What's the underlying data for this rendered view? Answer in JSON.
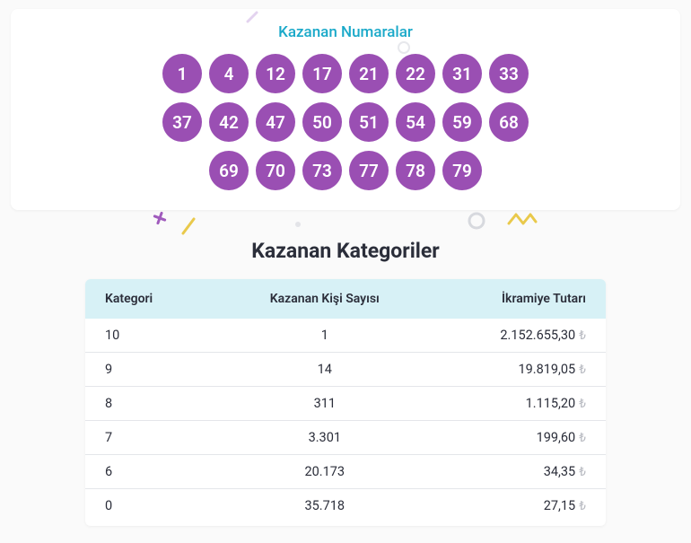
{
  "winning_numbers": {
    "title": "Kazanan Numaralar",
    "title_color": "#1aa9c9",
    "ball_color": "#9a4fb3",
    "ball_text_color": "#ffffff",
    "rows": [
      [
        "1",
        "4",
        "12",
        "17",
        "21",
        "22",
        "31",
        "33"
      ],
      [
        "37",
        "42",
        "47",
        "50",
        "51",
        "54",
        "59",
        "68"
      ],
      [
        "69",
        "70",
        "73",
        "77",
        "78",
        "79"
      ]
    ]
  },
  "categories": {
    "title": "Kazanan Kategoriler",
    "header_bg": "#d7f1f6",
    "columns": [
      "Kategori",
      "Kazanan Kişi Sayısı",
      "İkramiye Tutarı"
    ],
    "currency_symbol": "₺",
    "rows": [
      {
        "category": "10",
        "winners": "1",
        "prize": "2.152.655,30"
      },
      {
        "category": "9",
        "winners": "14",
        "prize": "19.819,05"
      },
      {
        "category": "8",
        "winners": "311",
        "prize": "1.115,20"
      },
      {
        "category": "7",
        "winners": "3.301",
        "prize": "199,60"
      },
      {
        "category": "6",
        "winners": "20.173",
        "prize": "34,35"
      },
      {
        "category": "0",
        "winners": "35.718",
        "prize": "27,15"
      }
    ]
  },
  "decorations": {
    "accent_purple": "#a05bbd",
    "accent_yellow": "#e9c94b",
    "accent_gray": "#d7d9de"
  }
}
